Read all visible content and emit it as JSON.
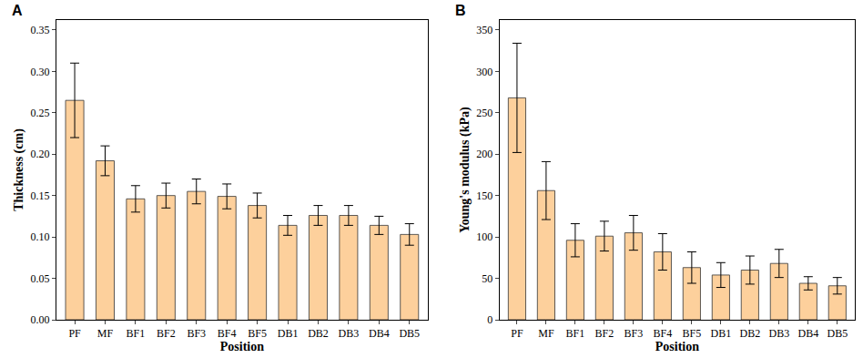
{
  "chart_data": [
    {
      "type": "bar",
      "title": "A",
      "x_label": "Position",
      "y_label": "Thickness (cm)",
      "categories": [
        "PF",
        "MF",
        "BF1",
        "BF2",
        "BF3",
        "BF4",
        "BF5",
        "DB1",
        "DB2",
        "DB3",
        "DB4",
        "DB5"
      ],
      "values": [
        0.265,
        0.192,
        0.146,
        0.15,
        0.155,
        0.149,
        0.138,
        0.114,
        0.126,
        0.126,
        0.114,
        0.103
      ],
      "error": [
        0.045,
        0.018,
        0.016,
        0.015,
        0.015,
        0.015,
        0.015,
        0.012,
        0.012,
        0.012,
        0.011,
        0.013
      ],
      "color": "#fdd09c",
      "ylim": [
        0,
        0.362
      ],
      "yticks": [
        {
          "value": 0,
          "label": "0.00"
        },
        0.05,
        {
          "value": 0.1,
          "label": "0.10"
        },
        0.15,
        {
          "value": 0.2,
          "label": "0.20"
        },
        0.25,
        {
          "value": 0.3,
          "label": "0.30"
        },
        0.35
      ],
      "grid": false
    },
    {
      "type": "bar",
      "title": "B",
      "x_label": "Position",
      "y_label": "Young's modulus (kPa)",
      "categories": [
        "PF",
        "MF",
        "BF1",
        "BF2",
        "BF3",
        "BF4",
        "BF5",
        "DB1",
        "DB2",
        "DB3",
        "DB4",
        "DB5"
      ],
      "values": [
        268,
        156,
        96,
        101,
        105,
        82,
        63,
        54,
        60,
        68,
        44,
        41
      ],
      "error": [
        66,
        35,
        20,
        18,
        21,
        22,
        19,
        15,
        17,
        17,
        8,
        10
      ],
      "color": "#fdd09c",
      "ylim": [
        0,
        362
      ],
      "yticks": [
        0,
        50,
        100,
        150,
        200,
        250,
        300,
        350
      ],
      "grid": false
    }
  ]
}
